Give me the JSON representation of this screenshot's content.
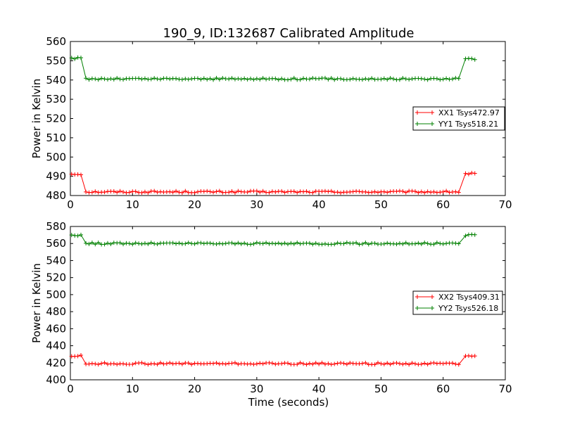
{
  "figure": {
    "title": "190_9, ID:132687 Calibrated Amplitude",
    "xlabel": "Time (seconds)"
  },
  "chart_data": [
    {
      "type": "line",
      "title": "190_9, ID:132687 Calibrated Amplitude",
      "xlabel": "",
      "ylabel": "Power in Kelvin",
      "xlim": [
        0,
        70
      ],
      "ylim": [
        480,
        560
      ],
      "xticks": [
        0,
        10,
        20,
        30,
        40,
        50,
        60,
        70
      ],
      "yticks": [
        480,
        490,
        500,
        510,
        520,
        530,
        540,
        550,
        560
      ],
      "grid": false,
      "legend_position": "center-right",
      "marker": "+",
      "sample_interval_seconds": 0.5,
      "x_start": 0.2,
      "series": [
        {
          "name": "XX1 Tsys472.97",
          "color": "#ff0000",
          "step": {
            "before": 491.2,
            "after": 481.8,
            "after_until": 482.3,
            "end": 491.3
          },
          "values_by_segment": [
            {
              "x_from": 0.2,
              "x_to": 2.0,
              "y": 491.2
            },
            {
              "x_from": 2.5,
              "x_to": 62.8,
              "y": 481.9
            },
            {
              "x_from": 63.6,
              "x_to": 65.2,
              "y": 491.3
            }
          ]
        },
        {
          "name": "YY1 Tsys518.21",
          "color": "#008000",
          "values_by_segment": [
            {
              "x_from": 0.2,
              "x_to": 2.0,
              "y": 551.3
            },
            {
              "x_from": 2.5,
              "x_to": 62.8,
              "y": 540.6
            },
            {
              "x_from": 63.6,
              "x_to": 65.2,
              "y": 551.0
            }
          ]
        }
      ]
    },
    {
      "type": "line",
      "title": "",
      "xlabel": "Time (seconds)",
      "ylabel": "Power in Kelvin",
      "xlim": [
        0,
        70
      ],
      "ylim": [
        400,
        580
      ],
      "xticks": [
        0,
        10,
        20,
        30,
        40,
        50,
        60,
        70
      ],
      "yticks": [
        400,
        420,
        440,
        460,
        480,
        500,
        520,
        540,
        560,
        580
      ],
      "grid": false,
      "legend_position": "center-right",
      "marker": "+",
      "series": [
        {
          "name": "XX2 Tsys409.31",
          "color": "#ff0000",
          "values_by_segment": [
            {
              "x_from": 0.2,
              "x_to": 2.0,
              "y": 428.0
            },
            {
              "x_from": 2.5,
              "x_to": 62.8,
              "y": 419.0
            },
            {
              "x_from": 63.6,
              "x_to": 65.2,
              "y": 428.5
            }
          ]
        },
        {
          "name": "YY2 Tsys526.18",
          "color": "#008000",
          "values_by_segment": [
            {
              "x_from": 0.2,
              "x_to": 2.0,
              "y": 570.0
            },
            {
              "x_from": 2.5,
              "x_to": 62.8,
              "y": 560.0
            },
            {
              "x_from": 63.6,
              "x_to": 65.2,
              "y": 570.0
            }
          ]
        }
      ]
    }
  ]
}
